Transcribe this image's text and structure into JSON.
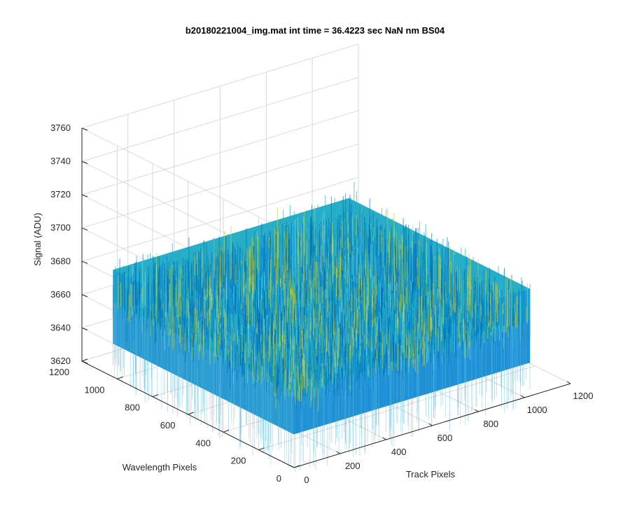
{
  "chart_data": {
    "type": "surface",
    "title": "b20180221004_img.mat int time = 36.4223 sec  NaN nm BS04",
    "xlabel": "Track Pixels",
    "ylabel": "Wavelength Pixels",
    "zlabel": "Signal (ADU)",
    "xlim": [
      0,
      1200
    ],
    "ylim": [
      0,
      1200
    ],
    "zlim": [
      3620,
      3760
    ],
    "x_ticks": [
      "0",
      "200",
      "400",
      "600",
      "800",
      "1000",
      "1200"
    ],
    "y_ticks": [
      "0",
      "200",
      "400",
      "600",
      "800",
      "1000",
      "1200"
    ],
    "z_ticks": [
      "3620",
      "3640",
      "3660",
      "3680",
      "3700",
      "3720",
      "3740",
      "3760"
    ],
    "surface": {
      "x_range": [
        0,
        1024
      ],
      "y_range": [
        0,
        1024
      ],
      "mean": 3665,
      "typical_min": 3640,
      "typical_max": 3700,
      "description_colormap": "parula"
    },
    "grid": true,
    "colors": {
      "low": "#0072BD",
      "mid": "#1FA9C9",
      "high": "#BFD04A"
    }
  }
}
